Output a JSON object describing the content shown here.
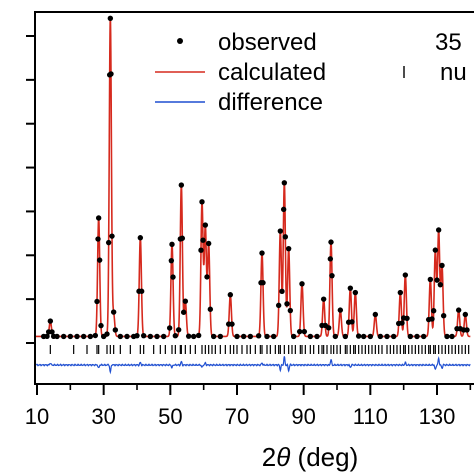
{
  "chart_data": {
    "type": "line",
    "xlabel": "2θ (deg)",
    "xlabel_parts": {
      "prefix": "2",
      "symbol": "θ",
      "suffix": " (deg)"
    },
    "xlim": [
      8,
      140
    ],
    "x_ticks": [
      10,
      30,
      50,
      70,
      90,
      110,
      130
    ],
    "x_tick_labels": [
      "10",
      "30",
      "50",
      "70",
      "90",
      "110",
      "130"
    ],
    "y_ticks": [
      0,
      1,
      2,
      3,
      4,
      5,
      6,
      7
    ],
    "ylim": [
      -0.55,
      7.5
    ],
    "grid": false,
    "legend": {
      "placement": "top-right",
      "entries": [
        {
          "label": "observed",
          "marker": "dot",
          "color": "#000000"
        },
        {
          "label": "calculated",
          "marker": "line",
          "color": "#d62a1e"
        },
        {
          "label": "difference",
          "marker": "line",
          "color": "#1f4fd1"
        }
      ],
      "extra_top": "35",
      "extra_reflections": "nu"
    },
    "colors": {
      "observed": "#000000",
      "calculated": "#d62a1e",
      "difference": "#1f4fd1",
      "reflections": "#000000"
    },
    "background_level": 0.15,
    "peak_width": 0.32,
    "peaks": [
      {
        "x": 14.0,
        "h": 0.35
      },
      {
        "x": 28.5,
        "h": 2.7
      },
      {
        "x": 32.0,
        "h": 7.25
      },
      {
        "x": 33.0,
        "h": 0.5
      },
      {
        "x": 41.0,
        "h": 2.25
      },
      {
        "x": 50.5,
        "h": 2.1
      },
      {
        "x": 53.3,
        "h": 3.45
      },
      {
        "x": 54.5,
        "h": 0.8
      },
      {
        "x": 59.5,
        "h": 3.05
      },
      {
        "x": 60.5,
        "h": 2.5
      },
      {
        "x": 61.5,
        "h": 2.1
      },
      {
        "x": 68.0,
        "h": 0.95
      },
      {
        "x": 77.5,
        "h": 1.9
      },
      {
        "x": 83.0,
        "h": 2.4
      },
      {
        "x": 84.2,
        "h": 3.5
      },
      {
        "x": 85.5,
        "h": 2.0
      },
      {
        "x": 89.5,
        "h": 1.2
      },
      {
        "x": 96.0,
        "h": 0.85
      },
      {
        "x": 98.2,
        "h": 2.15
      },
      {
        "x": 101.0,
        "h": 0.6
      },
      {
        "x": 104.0,
        "h": 1.1
      },
      {
        "x": 105.5,
        "h": 1.0
      },
      {
        "x": 111.5,
        "h": 0.5
      },
      {
        "x": 119.0,
        "h": 1.0
      },
      {
        "x": 120.5,
        "h": 1.4
      },
      {
        "x": 128.0,
        "h": 1.3
      },
      {
        "x": 129.5,
        "h": 1.95
      },
      {
        "x": 130.5,
        "h": 2.4
      },
      {
        "x": 131.5,
        "h": 1.6
      },
      {
        "x": 136.5,
        "h": 0.6
      },
      {
        "x": 138.5,
        "h": 0.5
      }
    ],
    "observed_points_x": [
      12,
      13,
      13.5,
      14,
      14.5,
      15,
      16,
      18,
      20,
      22,
      24,
      26,
      27.5,
      28,
      28.3,
      28.5,
      28.8,
      29.2,
      30,
      31,
      31.5,
      31.8,
      32,
      32.2,
      32.5,
      33,
      33.5,
      35,
      37,
      39,
      40,
      40.6,
      41,
      41.4,
      42,
      44,
      46,
      48,
      49.8,
      50.3,
      50.5,
      50.8,
      51.5,
      52.5,
      53,
      53.3,
      53.6,
      54,
      54.5,
      55.5,
      57,
      58.5,
      59.2,
      59.5,
      59.8,
      60.5,
      61,
      61.5,
      62,
      63,
      65,
      67.5,
      68,
      68.5,
      70,
      72,
      74,
      76.5,
      77.2,
      77.5,
      77.8,
      79,
      81,
      82.5,
      83,
      83.5,
      84,
      84.2,
      84.5,
      85,
      85.5,
      86,
      87,
      88.8,
      89.5,
      90.2,
      92,
      94,
      95.5,
      96,
      96.5,
      97.5,
      98,
      98.2,
      98.5,
      99.5,
      101,
      102.5,
      103.5,
      104,
      104.5,
      105.5,
      106.5,
      108,
      110,
      111.5,
      113,
      115,
      117,
      118.5,
      119,
      119.5,
      120,
      120.5,
      121,
      122,
      124,
      126,
      127.5,
      128,
      128.5,
      129,
      129.5,
      130,
      130.5,
      131,
      131.5,
      132,
      133,
      134.5,
      136,
      136.5,
      137,
      138,
      138.5,
      139
    ],
    "reflections": [
      14,
      21,
      25,
      28,
      28.5,
      31,
      32,
      33,
      35,
      38,
      41,
      42,
      45,
      47,
      48.5,
      50.5,
      51.5,
      53,
      53.3,
      54.5,
      56,
      57.5,
      59.5,
      60.5,
      61.5,
      62.5,
      63.5,
      65,
      66.5,
      68,
      69,
      70,
      71.5,
      73,
      74,
      75.5,
      77,
      77.5,
      79,
      80,
      81.5,
      82.5,
      83,
      84.2,
      85.5,
      86.5,
      87.5,
      89,
      89.5,
      90.5,
      92,
      93,
      94.5,
      95.5,
      96,
      97,
      98.2,
      99,
      100,
      101,
      102.5,
      103,
      104,
      105,
      105.5,
      106.5,
      107.5,
      108.5,
      109.5,
      110.5,
      111.5,
      112.5,
      113.5,
      115,
      116,
      117,
      118,
      119,
      120,
      120.5,
      121.5,
      122.5,
      123.5,
      124.5,
      125.5,
      126.5,
      127.5,
      128,
      129,
      129.5,
      130.5,
      131.5,
      132.5,
      133.5,
      134.5,
      135.5,
      136.5,
      137.5,
      138.5,
      139.5
    ],
    "difference_features": [
      {
        "x": 14,
        "dy": 0.05
      },
      {
        "x": 28.5,
        "dy": -0.08
      },
      {
        "x": 32,
        "dy": -0.18
      },
      {
        "x": 41,
        "dy": 0.06
      },
      {
        "x": 50.5,
        "dy": -0.07
      },
      {
        "x": 53.3,
        "dy": 0.08
      },
      {
        "x": 59.5,
        "dy": -0.06
      },
      {
        "x": 60.5,
        "dy": 0.05
      },
      {
        "x": 77.5,
        "dy": 0.05
      },
      {
        "x": 83,
        "dy": -0.12
      },
      {
        "x": 84.2,
        "dy": 0.2
      },
      {
        "x": 85.5,
        "dy": -0.14
      },
      {
        "x": 98.2,
        "dy": 0.14
      },
      {
        "x": 104,
        "dy": -0.06
      },
      {
        "x": 120.5,
        "dy": 0.06
      },
      {
        "x": 129.5,
        "dy": -0.12
      },
      {
        "x": 130.5,
        "dy": 0.16
      },
      {
        "x": 131.5,
        "dy": -0.08
      }
    ]
  }
}
